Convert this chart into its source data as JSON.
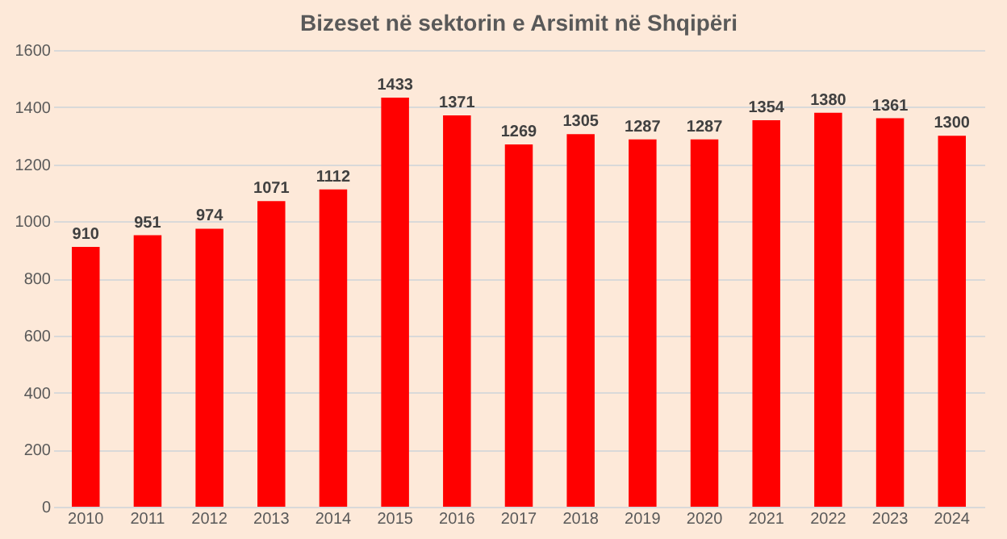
{
  "chart_data": {
    "type": "bar",
    "title": "Bizeset në sektorin e Arsimit në Shqipëri",
    "categories": [
      "2010",
      "2011",
      "2012",
      "2013",
      "2014",
      "2015",
      "2016",
      "2017",
      "2018",
      "2019",
      "2020",
      "2021",
      "2022",
      "2023",
      "2024"
    ],
    "values": [
      910,
      951,
      974,
      1071,
      1112,
      1433,
      1371,
      1269,
      1305,
      1287,
      1287,
      1354,
      1380,
      1361,
      1300
    ],
    "color": "#ff0000",
    "ylim": [
      0,
      1600
    ],
    "yticks": [
      0,
      200,
      400,
      600,
      800,
      1000,
      1200,
      1400,
      1600
    ],
    "grid": "y",
    "data_labels": true
  }
}
